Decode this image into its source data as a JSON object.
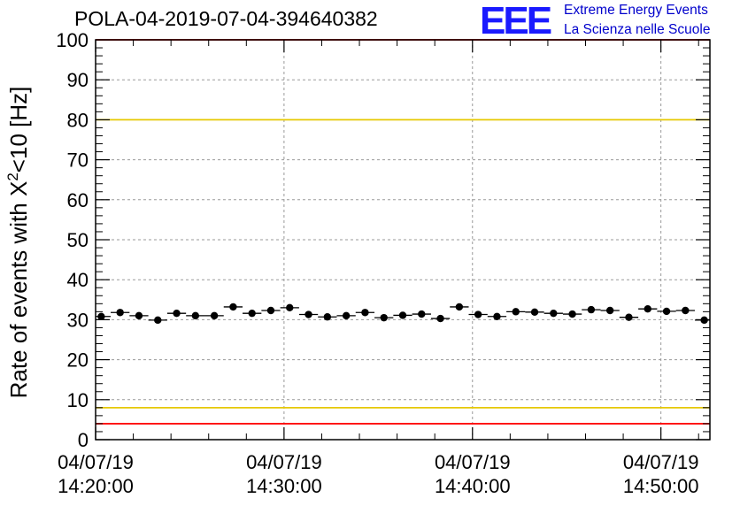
{
  "header": {
    "title": "POLA-04-2019-07-04-394640382",
    "logo_text": "EEE",
    "logo_line1": "Extreme Energy Events",
    "logo_line2": "La Scienza nelle Scuole"
  },
  "chart_data": {
    "type": "scatter",
    "title": "POLA-04-2019-07-04-394640382",
    "ylabel_main": "Rate of events with X",
    "ylabel_sup": "2",
    "ylabel_rest": "<10 [Hz]",
    "ylim": [
      0,
      100
    ],
    "yticks": [
      0,
      10,
      20,
      30,
      40,
      50,
      60,
      70,
      80,
      90,
      100
    ],
    "xlim_minutes": [
      0,
      32.6
    ],
    "xticks": [
      {
        "minute": 0,
        "date": "04/07/19",
        "time": "14:20:00"
      },
      {
        "minute": 10,
        "date": "04/07/19",
        "time": "14:30:00"
      },
      {
        "minute": 20,
        "date": "04/07/19",
        "time": "14:40:00"
      },
      {
        "minute": 30,
        "date": "04/07/19",
        "time": "14:50:00"
      }
    ],
    "grid": true,
    "reference_lines": [
      {
        "value": 100,
        "color": "#ff0000"
      },
      {
        "value": 80,
        "color": "#e6c800"
      },
      {
        "value": 8,
        "color": "#e6c800"
      },
      {
        "value": 4,
        "color": "#ff0000"
      }
    ],
    "bin_width_minutes": 1.0,
    "series": [
      {
        "x": [
          0.3,
          1.3,
          2.3,
          3.3,
          4.3,
          5.3,
          6.3,
          7.3,
          8.3,
          9.3,
          10.3,
          11.3,
          12.3,
          13.3,
          14.3,
          15.3,
          16.3,
          17.3,
          18.3,
          19.3,
          20.3,
          21.3,
          22.3,
          23.3,
          24.3,
          25.3,
          26.3,
          27.3,
          28.3,
          29.3,
          30.3,
          31.3,
          32.3
        ],
        "y": [
          30.8,
          31.8,
          31.0,
          29.9,
          31.6,
          31.0,
          31.0,
          33.2,
          31.6,
          32.3,
          33.0,
          31.3,
          30.7,
          31.0,
          31.8,
          30.5,
          31.1,
          31.4,
          30.3,
          33.2,
          31.3,
          30.8,
          32.0,
          31.9,
          31.6,
          31.4,
          32.5,
          32.3,
          30.6,
          32.7,
          32.1,
          32.3,
          29.9
        ]
      }
    ]
  }
}
